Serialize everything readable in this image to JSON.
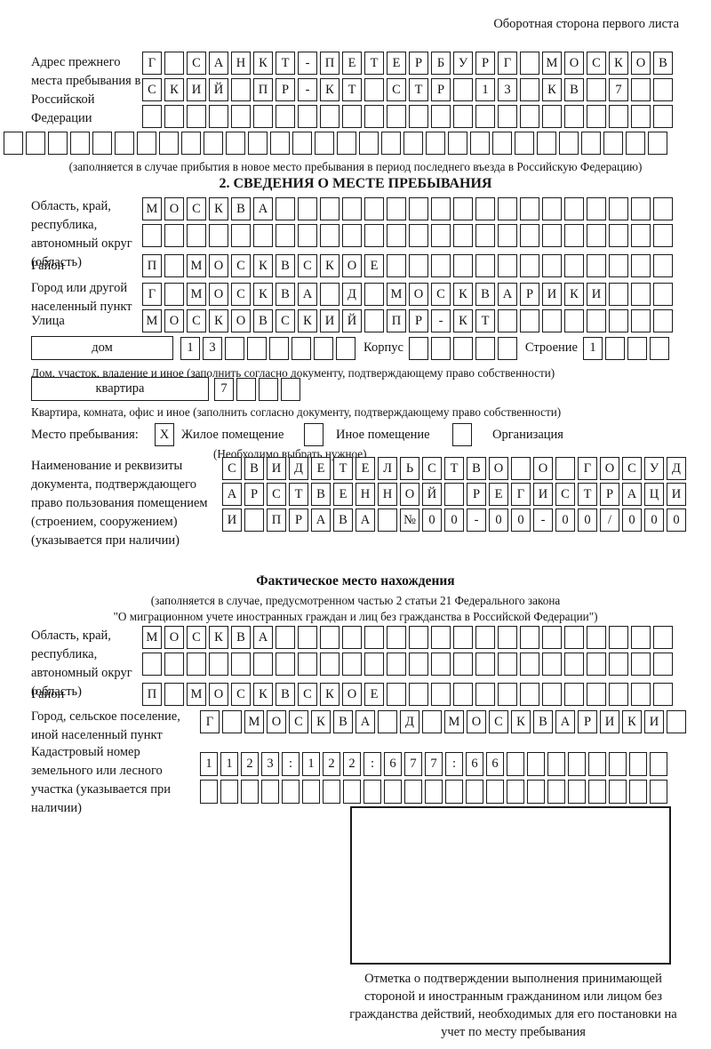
{
  "header": {
    "note": "Оборотная сторона первого листа"
  },
  "prev_address": {
    "label": "Адрес прежнего места пребывания в Российской Федерации",
    "rows": [
      {
        "len": 24,
        "text": "Г САНКТ-ПЕТЕРБУРГ МОСКОВ"
      },
      {
        "len": 24,
        "text": "СКИЙ ПР-КТ СТР 13 КВ 7"
      },
      {
        "len": 24,
        "text": ""
      },
      {
        "len": 30,
        "text": ""
      }
    ],
    "note": "(заполняется в случае прибытия в новое место пребывания в период последнего въезда в Российскую Федерацию)"
  },
  "section2": {
    "title": "2. СВЕДЕНИЯ О МЕСТЕ ПРЕБЫВАНИЯ",
    "region": {
      "label": "Область, край, республика, автономный округ (область)",
      "rows": [
        {
          "len": 24,
          "text": "МОСКВА"
        },
        {
          "len": 24,
          "text": ""
        }
      ]
    },
    "district": {
      "label": "Район",
      "row": {
        "len": 24,
        "text": "П МОСКВСКОЕ"
      }
    },
    "city": {
      "label": "Город или другой населенный пункт",
      "row": {
        "len": 24,
        "text": "Г МОСКВА Д МОСКВАРИКИ"
      }
    },
    "street": {
      "label": "Улица",
      "row": {
        "len": 24,
        "text": "МОСКОВСКИЙ ПР-КТ"
      }
    },
    "house": {
      "box_label": "дом",
      "cells": {
        "len": 8,
        "text": "13"
      },
      "korpus_label": "Корпус",
      "korpus_cells": {
        "len": 5,
        "text": ""
      },
      "stroenie_label": "Строение",
      "stroenie_cells": {
        "len": 4,
        "text": "1"
      }
    },
    "house_note": "Дом, участок, владение и иное (заполнить согласно документу, подтверждающему право собственности)",
    "apartment": {
      "box_label": "квартира",
      "cells": {
        "len": 4,
        "text": "7"
      }
    },
    "apartment_note": "Квартира, комната, офис и иное (заполнить согласно документу, подтверждающему право собственности)",
    "stay_type": {
      "label": "Место пребывания:",
      "note": "(Необходимо выбрать нужное)",
      "options": [
        {
          "label": "Жилое помещение",
          "box": {
            "len": 1,
            "text": "X"
          }
        },
        {
          "label": "Иное помещение",
          "box": {
            "len": 1,
            "text": ""
          }
        },
        {
          "label": "Организация",
          "box": {
            "len": 1,
            "text": ""
          }
        }
      ]
    },
    "document": {
      "label": "Наименование и реквизиты документа, подтверждающего право пользования помещением (строением, сооружением) (указывается при наличии)",
      "rows": [
        {
          "len": 21,
          "text": "СВИДЕТЕЛЬСТВО О ГОСУД"
        },
        {
          "len": 21,
          "text": "АРСТВЕННОЙ РЕГИСТРАЦИ"
        },
        {
          "len": 21,
          "text": "И ПРАВА №00-00-00/000"
        }
      ]
    }
  },
  "actual": {
    "title": "Фактическое место нахождения",
    "note1": "(заполняется в случае, предусмотренном частью 2 статьи 21 Федерального закона",
    "note2": "\"О миграционном учете иностранных граждан и лиц без гражданства в Российской Федерации\")",
    "region": {
      "label": "Область, край, республика, автономный округ (область)",
      "rows": [
        {
          "len": 24,
          "text": "МОСКВА"
        },
        {
          "len": 24,
          "text": ""
        }
      ]
    },
    "district": {
      "label": "Район",
      "row": {
        "len": 24,
        "text": "П МОСКВСКОЕ"
      }
    },
    "city": {
      "label": "Город, сельское поселение, иной населенный пункт",
      "row": {
        "len": 22,
        "text": "Г МОСКВА Д МОСКВАРИКИ"
      }
    },
    "cadastral": {
      "label": "Кадастровый номер земельного или лесного участка (указывается при наличии)",
      "rows": [
        {
          "len": 23,
          "text": "1123:122:677:66"
        },
        {
          "len": 23,
          "text": ""
        }
      ]
    }
  },
  "stamp": {
    "note": "Отметка о подтверждении выполнения принимающей стороной и иностранным гражданином или лицом без гражданства действий, необходимых для его постановки на учет по месту пребывания"
  }
}
